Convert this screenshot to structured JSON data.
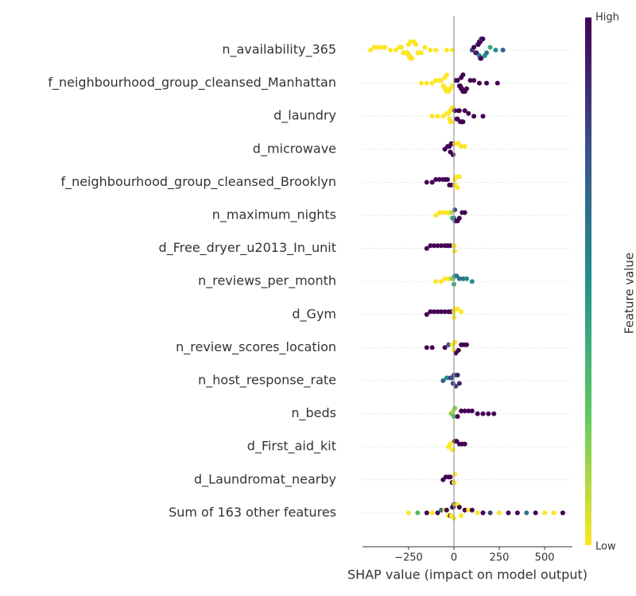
{
  "chart_data": {
    "type": "beeswarm",
    "x_label": "SHAP value (impact on model output)",
    "xlim": [
      -504,
      653
    ],
    "xticks": [
      {
        "value": -250,
        "label": "−250"
      },
      0,
      250,
      500
    ],
    "colorbar_label": "Feature value",
    "colorbar_high": "High",
    "colorbar_low": "Low",
    "colormap": [
      "#fde725",
      "#5ec962",
      "#21918c",
      "#3b528b",
      "#440154"
    ],
    "grid": true,
    "features": [
      {
        "name": "n_availability_365",
        "points": [
          [
            -460,
            0
          ],
          [
            -440,
            0
          ],
          [
            -420,
            0
          ],
          [
            -400,
            0
          ],
          [
            -380,
            0
          ],
          [
            -350,
            0
          ],
          [
            -320,
            0
          ],
          [
            -300,
            0
          ],
          [
            -290,
            0
          ],
          [
            -280,
            0
          ],
          [
            -270,
            0
          ],
          [
            -260,
            0
          ],
          [
            -255,
            0
          ],
          [
            -250,
            0
          ],
          [
            -250,
            0
          ],
          [
            -245,
            0
          ],
          [
            -240,
            0
          ],
          [
            -240,
            0
          ],
          [
            -235,
            0
          ],
          [
            -230,
            0
          ],
          [
            -225,
            0
          ],
          [
            -220,
            0
          ],
          [
            -210,
            0
          ],
          [
            -200,
            0
          ],
          [
            -190,
            0
          ],
          [
            -180,
            0
          ],
          [
            -160,
            0
          ],
          [
            -130,
            0
          ],
          [
            -100,
            0
          ],
          [
            -40,
            0
          ],
          [
            -10,
            0
          ],
          [
            100,
            0.8
          ],
          [
            110,
            1
          ],
          [
            120,
            1
          ],
          [
            125,
            0.9
          ],
          [
            130,
            0.7
          ],
          [
            135,
            1
          ],
          [
            140,
            0.6
          ],
          [
            140,
            1
          ],
          [
            145,
            1
          ],
          [
            145,
            0.8
          ],
          [
            150,
            1
          ],
          [
            150,
            0.7
          ],
          [
            155,
            0.9
          ],
          [
            160,
            1
          ],
          [
            170,
            0.5
          ],
          [
            180,
            0.6
          ],
          [
            200,
            0.4
          ],
          [
            230,
            0.5
          ],
          [
            270,
            0.7
          ]
        ]
      },
      {
        "name": "f_neighbourhood_group_cleansed_Manhattan",
        "points": [
          [
            -180,
            0
          ],
          [
            -150,
            0
          ],
          [
            -120,
            0
          ],
          [
            -100,
            0
          ],
          [
            -80,
            0
          ],
          [
            -70,
            0
          ],
          [
            -60,
            0
          ],
          [
            -55,
            0
          ],
          [
            -50,
            0
          ],
          [
            -50,
            0
          ],
          [
            -45,
            0
          ],
          [
            -40,
            0
          ],
          [
            -40,
            0
          ],
          [
            -35,
            0
          ],
          [
            -30,
            0
          ],
          [
            -20,
            0
          ],
          [
            -10,
            0
          ],
          [
            10,
            1
          ],
          [
            20,
            1
          ],
          [
            30,
            1
          ],
          [
            35,
            1
          ],
          [
            40,
            1
          ],
          [
            40,
            1
          ],
          [
            45,
            1
          ],
          [
            50,
            1
          ],
          [
            50,
            1
          ],
          [
            55,
            1
          ],
          [
            60,
            1
          ],
          [
            70,
            1
          ],
          [
            90,
            1
          ],
          [
            110,
            1
          ],
          [
            140,
            1
          ],
          [
            180,
            1
          ],
          [
            240,
            1
          ]
        ]
      },
      {
        "name": "d_laundry",
        "points": [
          [
            -120,
            0
          ],
          [
            -90,
            0
          ],
          [
            -60,
            0
          ],
          [
            -40,
            0
          ],
          [
            -30,
            0
          ],
          [
            -25,
            0
          ],
          [
            -20,
            0
          ],
          [
            -20,
            0
          ],
          [
            -15,
            0
          ],
          [
            -10,
            0
          ],
          [
            -5,
            0
          ],
          [
            5,
            1
          ],
          [
            15,
            1
          ],
          [
            20,
            1
          ],
          [
            25,
            1
          ],
          [
            30,
            1
          ],
          [
            35,
            1
          ],
          [
            40,
            1
          ],
          [
            45,
            1
          ],
          [
            50,
            1
          ],
          [
            60,
            1
          ],
          [
            80,
            1
          ],
          [
            110,
            1
          ],
          [
            160,
            1
          ]
        ]
      },
      {
        "name": "d_microwave",
        "points": [
          [
            -50,
            1
          ],
          [
            -35,
            1
          ],
          [
            -25,
            1
          ],
          [
            -20,
            1
          ],
          [
            -15,
            1
          ],
          [
            -10,
            1
          ],
          [
            -5,
            1
          ],
          [
            5,
            0
          ],
          [
            10,
            0
          ],
          [
            15,
            0
          ],
          [
            25,
            0
          ],
          [
            40,
            0
          ],
          [
            60,
            0
          ]
        ]
      },
      {
        "name": "f_neighbourhood_group_cleansed_Brooklyn",
        "points": [
          [
            -150,
            1
          ],
          [
            -120,
            1
          ],
          [
            -100,
            1
          ],
          [
            -80,
            1
          ],
          [
            -60,
            1
          ],
          [
            -45,
            1
          ],
          [
            -35,
            1
          ],
          [
            -25,
            1
          ],
          [
            -15,
            1
          ],
          [
            5,
            0
          ],
          [
            5,
            0
          ],
          [
            10,
            0
          ],
          [
            15,
            0
          ],
          [
            20,
            0
          ],
          [
            30,
            0
          ]
        ]
      },
      {
        "name": "n_maximum_nights",
        "points": [
          [
            -100,
            0
          ],
          [
            -80,
            0
          ],
          [
            -60,
            0
          ],
          [
            -40,
            0
          ],
          [
            -25,
            0
          ],
          [
            -15,
            0.1
          ],
          [
            -10,
            0.3
          ],
          [
            0,
            0.6
          ],
          [
            5,
            0.8
          ],
          [
            5,
            0.5
          ],
          [
            10,
            1
          ],
          [
            20,
            1
          ],
          [
            30,
            1
          ],
          [
            45,
            1
          ],
          [
            60,
            1
          ]
        ]
      },
      {
        "name": "d_Free_dryer_u2013_In_unit",
        "points": [
          [
            -150,
            1
          ],
          [
            -130,
            1
          ],
          [
            -110,
            1
          ],
          [
            -90,
            1
          ],
          [
            -70,
            1
          ],
          [
            -50,
            1
          ],
          [
            -35,
            1
          ],
          [
            -20,
            1
          ],
          [
            0,
            0
          ],
          [
            2,
            0
          ],
          [
            4,
            0
          ]
        ]
      },
      {
        "name": "n_reviews_per_month",
        "points": [
          [
            -100,
            0
          ],
          [
            -70,
            0
          ],
          [
            -50,
            0
          ],
          [
            -30,
            0
          ],
          [
            -15,
            0.1
          ],
          [
            -5,
            0.2
          ],
          [
            0,
            0.4
          ],
          [
            5,
            0.6
          ],
          [
            15,
            0.6
          ],
          [
            30,
            0.65
          ],
          [
            50,
            0.6
          ],
          [
            70,
            0.55
          ],
          [
            100,
            0.5
          ]
        ]
      },
      {
        "name": "d_Gym",
        "points": [
          [
            -150,
            1
          ],
          [
            -130,
            1
          ],
          [
            -110,
            1
          ],
          [
            -90,
            1
          ],
          [
            -70,
            1
          ],
          [
            -50,
            1
          ],
          [
            -30,
            1
          ],
          [
            -15,
            1
          ],
          [
            0,
            0
          ],
          [
            2,
            0
          ],
          [
            5,
            0
          ],
          [
            20,
            0
          ],
          [
            40,
            0
          ]
        ]
      },
      {
        "name": "n_review_scores_location",
        "points": [
          [
            -150,
            1
          ],
          [
            -120,
            1
          ],
          [
            -50,
            1
          ],
          [
            -30,
            0.7
          ],
          [
            -10,
            0
          ],
          [
            -5,
            0
          ],
          [
            0,
            0
          ],
          [
            5,
            0
          ],
          [
            10,
            1
          ],
          [
            25,
            1
          ],
          [
            40,
            1
          ],
          [
            55,
            1
          ],
          [
            70,
            1
          ]
        ]
      },
      {
        "name": "n_host_response_rate",
        "points": [
          [
            -60,
            0.7
          ],
          [
            -40,
            0.5
          ],
          [
            -20,
            0.8
          ],
          [
            -10,
            0.75
          ],
          [
            -5,
            0.8
          ],
          [
            0,
            0.8
          ],
          [
            5,
            0.75
          ],
          [
            10,
            0.8
          ],
          [
            20,
            0.9
          ],
          [
            30,
            0.9
          ]
        ]
      },
      {
        "name": "n_beds",
        "points": [
          [
            -15,
            0.2
          ],
          [
            -5,
            0.1
          ],
          [
            0,
            0.3
          ],
          [
            5,
            0.2
          ],
          [
            20,
            1
          ],
          [
            40,
            1
          ],
          [
            60,
            1
          ],
          [
            80,
            1
          ],
          [
            100,
            1
          ],
          [
            130,
            1
          ],
          [
            160,
            1
          ],
          [
            190,
            1
          ],
          [
            220,
            1
          ]
        ]
      },
      {
        "name": "d_First_aid_kit",
        "points": [
          [
            -30,
            0
          ],
          [
            -20,
            0
          ],
          [
            -10,
            0
          ],
          [
            -5,
            0
          ],
          [
            0,
            0
          ],
          [
            5,
            1
          ],
          [
            15,
            1
          ],
          [
            30,
            1
          ],
          [
            45,
            1
          ],
          [
            60,
            1
          ]
        ]
      },
      {
        "name": "d_Laundromat_nearby",
        "points": [
          [
            -60,
            1
          ],
          [
            -45,
            1
          ],
          [
            -30,
            1
          ],
          [
            -20,
            1
          ],
          [
            -10,
            1
          ],
          [
            0,
            0
          ],
          [
            2,
            0
          ],
          [
            5,
            0
          ]
        ]
      },
      {
        "name": "Sum of 163 other features",
        "points": [
          [
            -250,
            0
          ],
          [
            -200,
            0.3
          ],
          [
            -150,
            1
          ],
          [
            -120,
            0
          ],
          [
            -90,
            1
          ],
          [
            -70,
            0.6
          ],
          [
            -50,
            0
          ],
          [
            -40,
            1
          ],
          [
            -30,
            0
          ],
          [
            -20,
            1
          ],
          [
            -15,
            0
          ],
          [
            -10,
            0.5
          ],
          [
            -5,
            1
          ],
          [
            0,
            0
          ],
          [
            0,
            1
          ],
          [
            5,
            0
          ],
          [
            10,
            1
          ],
          [
            15,
            0.2
          ],
          [
            20,
            0
          ],
          [
            30,
            1
          ],
          [
            40,
            0
          ],
          [
            60,
            1
          ],
          [
            80,
            0
          ],
          [
            100,
            1
          ],
          [
            130,
            0
          ],
          [
            160,
            1
          ],
          [
            200,
            0.8
          ],
          [
            250,
            0
          ],
          [
            300,
            1
          ],
          [
            350,
            1
          ],
          [
            400,
            0.6
          ],
          [
            450,
            1
          ],
          [
            500,
            0
          ],
          [
            550,
            0
          ],
          [
            600,
            1
          ]
        ]
      }
    ]
  }
}
